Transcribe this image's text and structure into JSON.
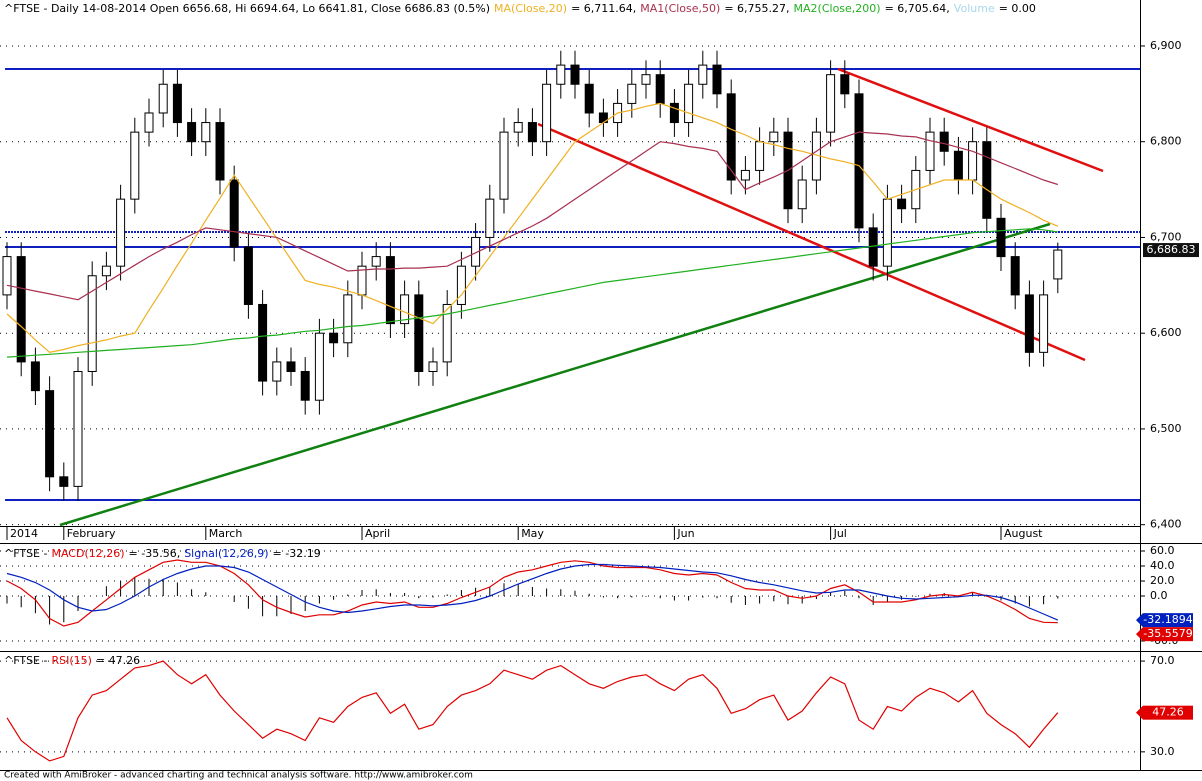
{
  "chart_data": [
    {
      "type": "candlestick",
      "title": "^FTSE - Daily 14-08-2014 Open 6656.68, Hi 6694.64, Lo 6641.81, Close 6686.83 (0.5%)",
      "categories": [
        "2014",
        null,
        null,
        null,
        "February",
        null,
        null,
        null,
        null,
        null,
        null,
        null,
        null,
        null,
        "March",
        null,
        null,
        null,
        null,
        null,
        null,
        null,
        null,
        null,
        null,
        "April",
        null,
        null,
        null,
        null,
        null,
        null,
        null,
        null,
        null,
        null,
        "May",
        null,
        null,
        null,
        null,
        null,
        null,
        null,
        null,
        null,
        null,
        "Jun",
        null,
        null,
        null,
        null,
        null,
        null,
        null,
        null,
        null,
        null,
        "Jul",
        null,
        null,
        null,
        null,
        null,
        null,
        null,
        null,
        null,
        null,
        null,
        "August",
        null,
        null,
        null,
        null
      ],
      "open": [
        6640,
        6680,
        6570,
        6540,
        6450,
        6440,
        6560,
        6660,
        6670,
        6740,
        6810,
        6830,
        6860,
        6820,
        6800,
        6820,
        6760,
        6690,
        6630,
        6550,
        6570,
        6560,
        6530,
        6600,
        6590,
        6640,
        6670,
        6680,
        6610,
        6640,
        6560,
        6570,
        6630,
        6670,
        6700,
        6740,
        6810,
        6820,
        6800,
        6860,
        6880,
        6860,
        6830,
        6820,
        6840,
        6860,
        6870,
        6840,
        6820,
        6860,
        6880,
        6850,
        6760,
        6770,
        6800,
        6810,
        6730,
        6760,
        6810,
        6870,
        6850,
        6710,
        6670,
        6740,
        6730,
        6770,
        6810,
        6790,
        6760,
        6800,
        6720,
        6680,
        6640,
        6580,
        6656.68
      ],
      "high": [
        6695,
        6695,
        6585,
        6555,
        6465,
        6575,
        6675,
        6685,
        6755,
        6825,
        6845,
        6875,
        6875,
        6835,
        6835,
        6835,
        6775,
        6705,
        6645,
        6585,
        6585,
        6575,
        6615,
        6615,
        6655,
        6685,
        6695,
        6695,
        6655,
        6655,
        6585,
        6645,
        6685,
        6715,
        6755,
        6825,
        6835,
        6835,
        6875,
        6895,
        6895,
        6875,
        6845,
        6855,
        6875,
        6885,
        6885,
        6855,
        6875,
        6895,
        6895,
        6865,
        6785,
        6815,
        6825,
        6825,
        6775,
        6825,
        6885,
        6885,
        6865,
        6725,
        6755,
        6755,
        6785,
        6825,
        6825,
        6805,
        6815,
        6815,
        6735,
        6695,
        6655,
        6655,
        6694.64
      ],
      "low": [
        6625,
        6555,
        6525,
        6435,
        6425,
        6425,
        6545,
        6645,
        6655,
        6725,
        6795,
        6815,
        6805,
        6785,
        6785,
        6745,
        6675,
        6615,
        6535,
        6535,
        6545,
        6515,
        6515,
        6575,
        6575,
        6625,
        6655,
        6595,
        6595,
        6545,
        6545,
        6555,
        6615,
        6655,
        6685,
        6725,
        6795,
        6785,
        6785,
        6845,
        6845,
        6815,
        6805,
        6805,
        6825,
        6845,
        6825,
        6805,
        6805,
        6845,
        6835,
        6745,
        6745,
        6755,
        6785,
        6715,
        6715,
        6745,
        6795,
        6835,
        6695,
        6655,
        6655,
        6715,
        6715,
        6755,
        6775,
        6745,
        6745,
        6705,
        6665,
        6625,
        6565,
        6565,
        6641.81
      ],
      "close": [
        6680,
        6570,
        6540,
        6450,
        6440,
        6560,
        6660,
        6670,
        6740,
        6810,
        6830,
        6860,
        6820,
        6800,
        6820,
        6760,
        6690,
        6630,
        6550,
        6570,
        6560,
        6530,
        6600,
        6590,
        6640,
        6670,
        6680,
        6610,
        6640,
        6560,
        6570,
        6630,
        6670,
        6700,
        6740,
        6810,
        6820,
        6800,
        6860,
        6880,
        6860,
        6830,
        6820,
        6840,
        6860,
        6870,
        6840,
        6820,
        6860,
        6880,
        6850,
        6760,
        6770,
        6800,
        6810,
        6730,
        6760,
        6810,
        6870,
        6850,
        6710,
        6670,
        6740,
        6730,
        6770,
        6810,
        6790,
        6760,
        6800,
        6720,
        6680,
        6640,
        6580,
        6640,
        6686.83
      ],
      "last_label": "6,686.83",
      "series": [
        {
          "name": "MA(Close,20)",
          "label": "= 6,711.64,",
          "color": "#f0b020",
          "values": [
            6620,
            6607,
            6593,
            6580,
            6583,
            6587,
            6590,
            6593,
            6597,
            6600,
            6624,
            6647,
            6671,
            6694,
            6718,
            6741,
            6765,
            6743,
            6721,
            6699,
            6677,
            6655,
            6651,
            6648,
            6644,
            6640,
            6634,
            6628,
            6622,
            6616,
            6610,
            6625,
            6640,
            6660,
            6680,
            6700,
            6720,
            6740,
            6760,
            6780,
            6800,
            6810,
            6820,
            6830,
            6833,
            6837,
            6840,
            6835,
            6830,
            6825,
            6820,
            6813,
            6807,
            6800,
            6797,
            6793,
            6790,
            6786,
            6782,
            6779,
            6775,
            6758,
            6740,
            6745,
            6750,
            6755,
            6760,
            6760,
            6760,
            6750,
            6740,
            6733,
            6726,
            6718,
            6711.64
          ]
        },
        {
          "name": "MA1(Close,50)",
          "label": "= 6,755.27,",
          "color": "#a83050",
          "values": [
            6650,
            6647,
            6644,
            6641,
            6638,
            6635,
            6644,
            6653,
            6662,
            6671,
            6680,
            6688,
            6695,
            6703,
            6710,
            6708,
            6706,
            6704,
            6702,
            6700,
            6693,
            6686,
            6679,
            6672,
            6665,
            6666,
            6667,
            6667,
            6668,
            6668,
            6669,
            6670,
            6677,
            6684,
            6691,
            6698,
            6705,
            6712,
            6720,
            6730,
            6740,
            6750,
            6760,
            6770,
            6780,
            6790,
            6800,
            6798,
            6795,
            6793,
            6790,
            6770,
            6750,
            6757,
            6763,
            6770,
            6780,
            6790,
            6800,
            6805,
            6810,
            6809,
            6808,
            6806,
            6805,
            6801,
            6798,
            6794,
            6790,
            6784,
            6778,
            6772,
            6766,
            6760,
            6755.27
          ]
        },
        {
          "name": "MA2(Close,200)",
          "label": "= 6,705.64,",
          "color": "#20b020",
          "values": [
            6575,
            6576,
            6577,
            6578,
            6579,
            6580,
            6581,
            6582,
            6583,
            6584,
            6585,
            6586,
            6587,
            6588,
            6590,
            6592,
            6594,
            6595,
            6597,
            6598,
            6600,
            6602,
            6603,
            6605,
            6607,
            6608,
            6610,
            6612,
            6614,
            6616,
            6618,
            6620,
            6623,
            6626,
            6629,
            6632,
            6635,
            6638,
            6641,
            6644,
            6647,
            6650,
            6653,
            6655,
            6657,
            6659,
            6661,
            6663,
            6665,
            6667,
            6669,
            6671,
            6673,
            6675,
            6677,
            6679,
            6681,
            6683,
            6685,
            6687,
            6689,
            6691,
            6693,
            6695,
            6697,
            6699,
            6701,
            6703,
            6705,
            6706,
            6707,
            6708,
            6709,
            6708,
            6705.64
          ]
        }
      ],
      "volume_name": "Volume",
      "volume_label": "= 0.00",
      "volume_color": "#a8d8ea",
      "ylim": [
        6384,
        6948
      ],
      "yticks": [
        {
          "value": 6400,
          "label": "6,400"
        },
        {
          "value": 6500,
          "label": "6,500"
        },
        {
          "value": 6600,
          "label": "6,600"
        },
        {
          "value": 6700,
          "label": "6,700"
        },
        {
          "value": 6800,
          "label": "6,800"
        },
        {
          "value": 6900,
          "label": "6,900"
        }
      ],
      "grid": true
    },
    {
      "type": "line",
      "title": "^FTSE -",
      "series": [
        {
          "name": "MACD(12,26)",
          "label": "= -35.56,",
          "color": "#e00000",
          "values": [
            20,
            10,
            -5,
            -30,
            -40,
            -35,
            -20,
            -5,
            10,
            25,
            35,
            45,
            48,
            45,
            45,
            40,
            30,
            15,
            -5,
            -15,
            -22,
            -28,
            -25,
            -25,
            -20,
            -12,
            -8,
            -10,
            -8,
            -15,
            -15,
            -10,
            -2,
            5,
            12,
            25,
            32,
            35,
            40,
            45,
            47,
            45,
            40,
            38,
            38,
            38,
            35,
            30,
            28,
            30,
            28,
            18,
            10,
            8,
            8,
            0,
            -3,
            0,
            10,
            15,
            5,
            -8,
            -8,
            -8,
            -5,
            0,
            2,
            0,
            5,
            0,
            -8,
            -18,
            -30,
            -35,
            -35.5579
          ]
        },
        {
          "name": "Signal(12,26,9)",
          "label": "= -32.19",
          "color": "#0020c0",
          "values": [
            30,
            25,
            18,
            8,
            -5,
            -15,
            -20,
            -18,
            -10,
            0,
            12,
            22,
            30,
            36,
            40,
            40,
            38,
            32,
            22,
            12,
            2,
            -8,
            -15,
            -20,
            -22,
            -20,
            -17,
            -14,
            -12,
            -12,
            -13,
            -12,
            -10,
            -6,
            0,
            8,
            16,
            23,
            30,
            36,
            40,
            42,
            42,
            41,
            40,
            39,
            38,
            36,
            34,
            32,
            31,
            27,
            22,
            18,
            15,
            11,
            7,
            4,
            5,
            8,
            8,
            4,
            0,
            -3,
            -4,
            -3,
            -2,
            -1,
            1,
            1,
            -2,
            -8,
            -16,
            -24,
            -32.1894
          ]
        }
      ],
      "histogram": [
        -10,
        -15,
        -23,
        -38,
        -35,
        -20,
        0,
        13,
        20,
        25,
        23,
        23,
        18,
        9,
        5,
        0,
        -8,
        -17,
        -27,
        -27,
        -24,
        -20,
        -10,
        -5,
        2,
        8,
        9,
        4,
        4,
        -3,
        -2,
        2,
        8,
        11,
        12,
        17,
        16,
        12,
        10,
        9,
        7,
        3,
        -2,
        -3,
        -2,
        -1,
        -3,
        -6,
        -6,
        -2,
        -3,
        -9,
        -12,
        -10,
        -7,
        -11,
        -10,
        -4,
        5,
        7,
        -3,
        -12,
        -8,
        -5,
        -1,
        3,
        4,
        1,
        4,
        -1,
        -6,
        -10,
        -14,
        -11,
        -3.3685
      ],
      "histogram_color": "#000000",
      "ylim": [
        -72,
        68
      ],
      "yticks": [
        {
          "value": 60,
          "label": "60.0"
        },
        {
          "value": 40,
          "label": "40.0"
        },
        {
          "value": 20,
          "label": "20.0"
        },
        {
          "value": 0,
          "label": "0.0"
        },
        {
          "value": -60,
          "label": "-60.0"
        }
      ],
      "grid": true
    },
    {
      "type": "line",
      "title": "^FTSE -",
      "series": [
        {
          "name": "RSI(15)",
          "label": "= 47.26",
          "color": "#e00000",
          "values": [
            45,
            35,
            30,
            26,
            28,
            45,
            55,
            57,
            62,
            67,
            68,
            70,
            64,
            60,
            64,
            55,
            48,
            42,
            36,
            40,
            38,
            35,
            45,
            43,
            50,
            54,
            56,
            47,
            51,
            40,
            42,
            50,
            55,
            57,
            60,
            66,
            64,
            62,
            66,
            68,
            64,
            60,
            58,
            61,
            63,
            64,
            60,
            57,
            62,
            64,
            58,
            47,
            49,
            53,
            55,
            44,
            48,
            56,
            63,
            60,
            44,
            40,
            50,
            48,
            54,
            58,
            56,
            52,
            57,
            47,
            42,
            38,
            32,
            40,
            47.26
          ]
        }
      ],
      "ylim": [
        22,
        74
      ],
      "yticks": [
        {
          "value": 70,
          "label": "70.0"
        },
        {
          "value": 30,
          "label": "30.0"
        }
      ],
      "grid": true
    }
  ],
  "footer": "Created with AmiBroker - advanced charting and technical analysis software. http://www.amibroker.com"
}
